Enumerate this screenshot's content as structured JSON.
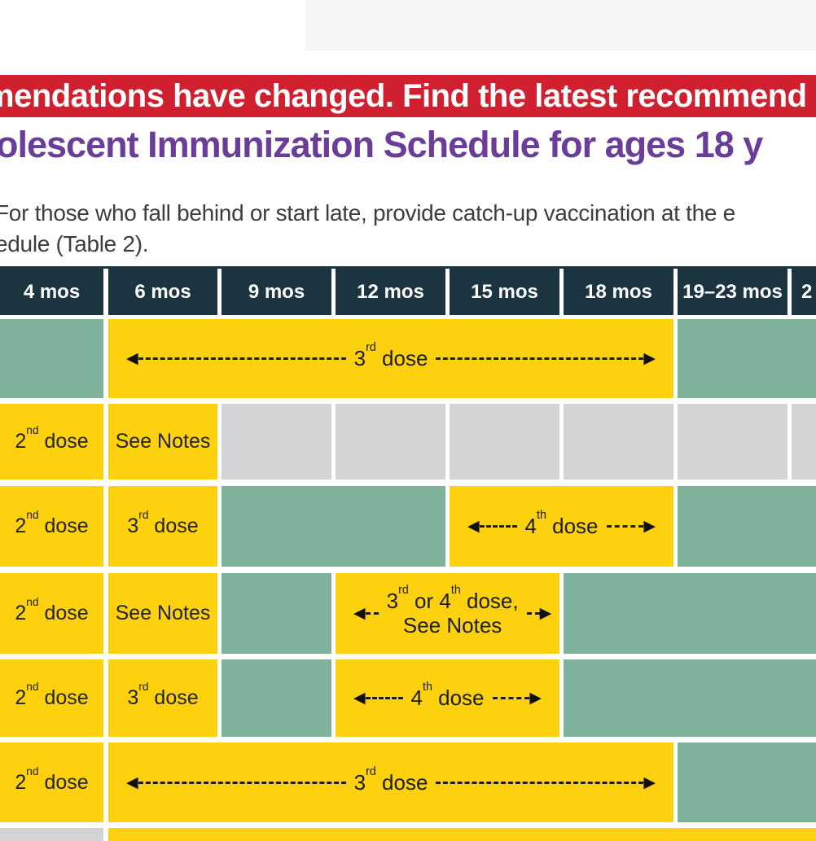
{
  "top_banner": {
    "text": "mendations have changed. Find the latest recommend"
  },
  "title": {
    "text": "olescent Immunization Schedule for ages 18 y"
  },
  "intro": {
    "line1": "For those who fall behind or start late, provide catch-up vaccination at the e",
    "line2": "edule (Table 2)."
  },
  "colors": {
    "banner_red": "#d02030",
    "title_purple": "#6a3d98",
    "header_navy": "#1c3340",
    "recommended_yellow": "#fdd10e",
    "catchup_green": "#7eb29a",
    "not_recommended_gray": "#d2d3d4",
    "top_strip_gray": "#f5f5f6",
    "page_bg": "#ffffff"
  },
  "table": {
    "headers": [
      "4 mos",
      "6 mos",
      "9 mos",
      "12 mos",
      "15 mos",
      "18 mos",
      "19–23 mos",
      "2"
    ],
    "labels": {
      "dose2": [
        {
          "t": "2"
        },
        {
          "t": "nd",
          "sup": true
        },
        {
          "t": " dose"
        }
      ],
      "dose3": [
        {
          "t": "3"
        },
        {
          "t": "rd",
          "sup": true
        },
        {
          "t": " dose"
        }
      ],
      "dose4": [
        {
          "t": "4"
        },
        {
          "t": "th",
          "sup": true
        },
        {
          "t": " dose"
        }
      ],
      "dose3or4_line1": [
        {
          "t": "3"
        },
        {
          "t": "rd",
          "sup": true
        },
        {
          "t": " or 4"
        },
        {
          "t": "th",
          "sup": true
        },
        {
          "t": " dose,"
        }
      ],
      "see_notes": "See Notes"
    },
    "rows": [
      {
        "cells": [
          {
            "range": "4 mos",
            "type": "green"
          },
          {
            "range": "6 mos–18 mos",
            "type": "yellow",
            "text": "3rd dose",
            "arrow": "long"
          },
          {
            "range": "19–23 mos +",
            "type": "green"
          }
        ]
      },
      {
        "cells": [
          {
            "range": "4 mos",
            "type": "yellow",
            "text": "2nd dose"
          },
          {
            "range": "6 mos",
            "type": "yellow",
            "text": "See Notes"
          },
          {
            "range": "9 mos",
            "type": "gray"
          },
          {
            "range": "12 mos",
            "type": "gray"
          },
          {
            "range": "15 mos",
            "type": "gray"
          },
          {
            "range": "18 mos",
            "type": "gray"
          },
          {
            "range": "19–23 mos",
            "type": "gray"
          },
          {
            "range": "+",
            "type": "gray"
          }
        ]
      },
      {
        "cells": [
          {
            "range": "4 mos",
            "type": "yellow",
            "text": "2nd dose"
          },
          {
            "range": "6 mos",
            "type": "yellow",
            "text": "3rd dose"
          },
          {
            "range": "9 mos–12 mos",
            "type": "green"
          },
          {
            "range": "15 mos–18 mos",
            "type": "yellow",
            "text": "4th dose",
            "arrow": "long"
          },
          {
            "range": "19–23 mos +",
            "type": "green"
          }
        ]
      },
      {
        "cells": [
          {
            "range": "4 mos",
            "type": "yellow",
            "text": "2nd dose"
          },
          {
            "range": "6 mos",
            "type": "yellow",
            "text": "See Notes"
          },
          {
            "range": "9 mos",
            "type": "green"
          },
          {
            "range": "12 mos–15 mos",
            "type": "yellow",
            "text": "3rd or 4th dose, See Notes",
            "arrow": "short"
          },
          {
            "range": "18 mos +",
            "type": "green"
          }
        ]
      },
      {
        "cells": [
          {
            "range": "4 mos",
            "type": "yellow",
            "text": "2nd dose"
          },
          {
            "range": "6 mos",
            "type": "yellow",
            "text": "3rd dose"
          },
          {
            "range": "9 mos",
            "type": "green"
          },
          {
            "range": "12 mos–15 mos",
            "type": "yellow",
            "text": "4th dose",
            "arrow": "long"
          },
          {
            "range": "18 mos +",
            "type": "green"
          }
        ]
      },
      {
        "cells": [
          {
            "range": "4 mos",
            "type": "yellow",
            "text": "2nd dose"
          },
          {
            "range": "6 mos–18 mos",
            "type": "yellow",
            "text": "3rd dose",
            "arrow": "long"
          },
          {
            "range": "19–23 mos +",
            "type": "green"
          }
        ]
      },
      {
        "cells": [
          {
            "range": "4 mos",
            "type": "gray"
          },
          {
            "range": "6 mos +",
            "type": "yellow"
          }
        ]
      }
    ]
  }
}
